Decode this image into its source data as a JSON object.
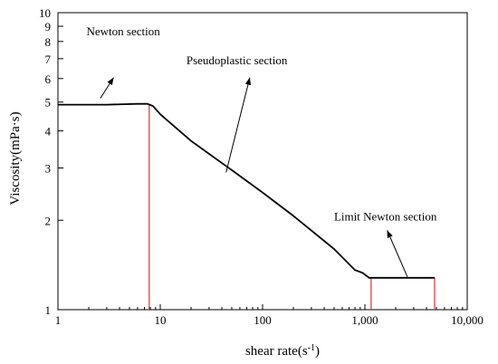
{
  "chart_data": {
    "type": "line",
    "xlabel": "shear rate(s",
    "xlabel_sup": "-1",
    "xlabel_end": ")",
    "ylabel": "Viscosity(mPa·s)",
    "xscale": "log",
    "yscale": "log",
    "xlim": [
      1,
      10000
    ],
    "ylim": [
      1,
      10
    ],
    "xticks": [
      1,
      10,
      100,
      1000,
      10000
    ],
    "xtick_labels": [
      "1",
      "10",
      "100",
      "1,000",
      "10,000"
    ],
    "yticks": [
      1,
      2,
      3,
      4,
      5,
      6,
      7,
      8,
      9,
      10
    ],
    "ytick_labels": [
      "1",
      "2",
      "3",
      "4",
      "5",
      "6",
      "7",
      "8",
      "9",
      "10"
    ],
    "grid": false,
    "series": [
      {
        "x": [
          1,
          3,
          6,
          7.5,
          8.5,
          10,
          20,
          50,
          100,
          200,
          500,
          800,
          950,
          1100,
          2000,
          4800
        ],
        "y": [
          4.9,
          4.9,
          4.93,
          4.93,
          4.85,
          4.55,
          3.7,
          2.95,
          2.48,
          2.07,
          1.6,
          1.36,
          1.33,
          1.28,
          1.28,
          1.28
        ],
        "color": "#000000"
      }
    ],
    "vlines": [
      {
        "x": 7.8,
        "y_top": 4.93,
        "color": "#e03030"
      },
      {
        "x": 1150,
        "y_top": 1.28,
        "color": "#e03030"
      },
      {
        "x": 4800,
        "y_top": 1.28,
        "color": "#e03030"
      }
    ],
    "annotations": [
      {
        "text": "Newton section",
        "text_at": [
          1.9,
          8.4
        ],
        "arrow_from": [
          2.6,
          5.15
        ],
        "arrow_to": [
          3.5,
          6.05
        ]
      },
      {
        "text": "Pseudoplastic section",
        "text_at": [
          18,
          6.7
        ],
        "arrow_from": [
          44,
          2.9
        ],
        "arrow_to": [
          75,
          6.05
        ]
      },
      {
        "text": "Limit Newton section",
        "text_at": [
          500,
          2.0
        ],
        "arrow_from": [
          2600,
          1.29
        ],
        "arrow_to": [
          1650,
          1.85
        ]
      }
    ]
  }
}
